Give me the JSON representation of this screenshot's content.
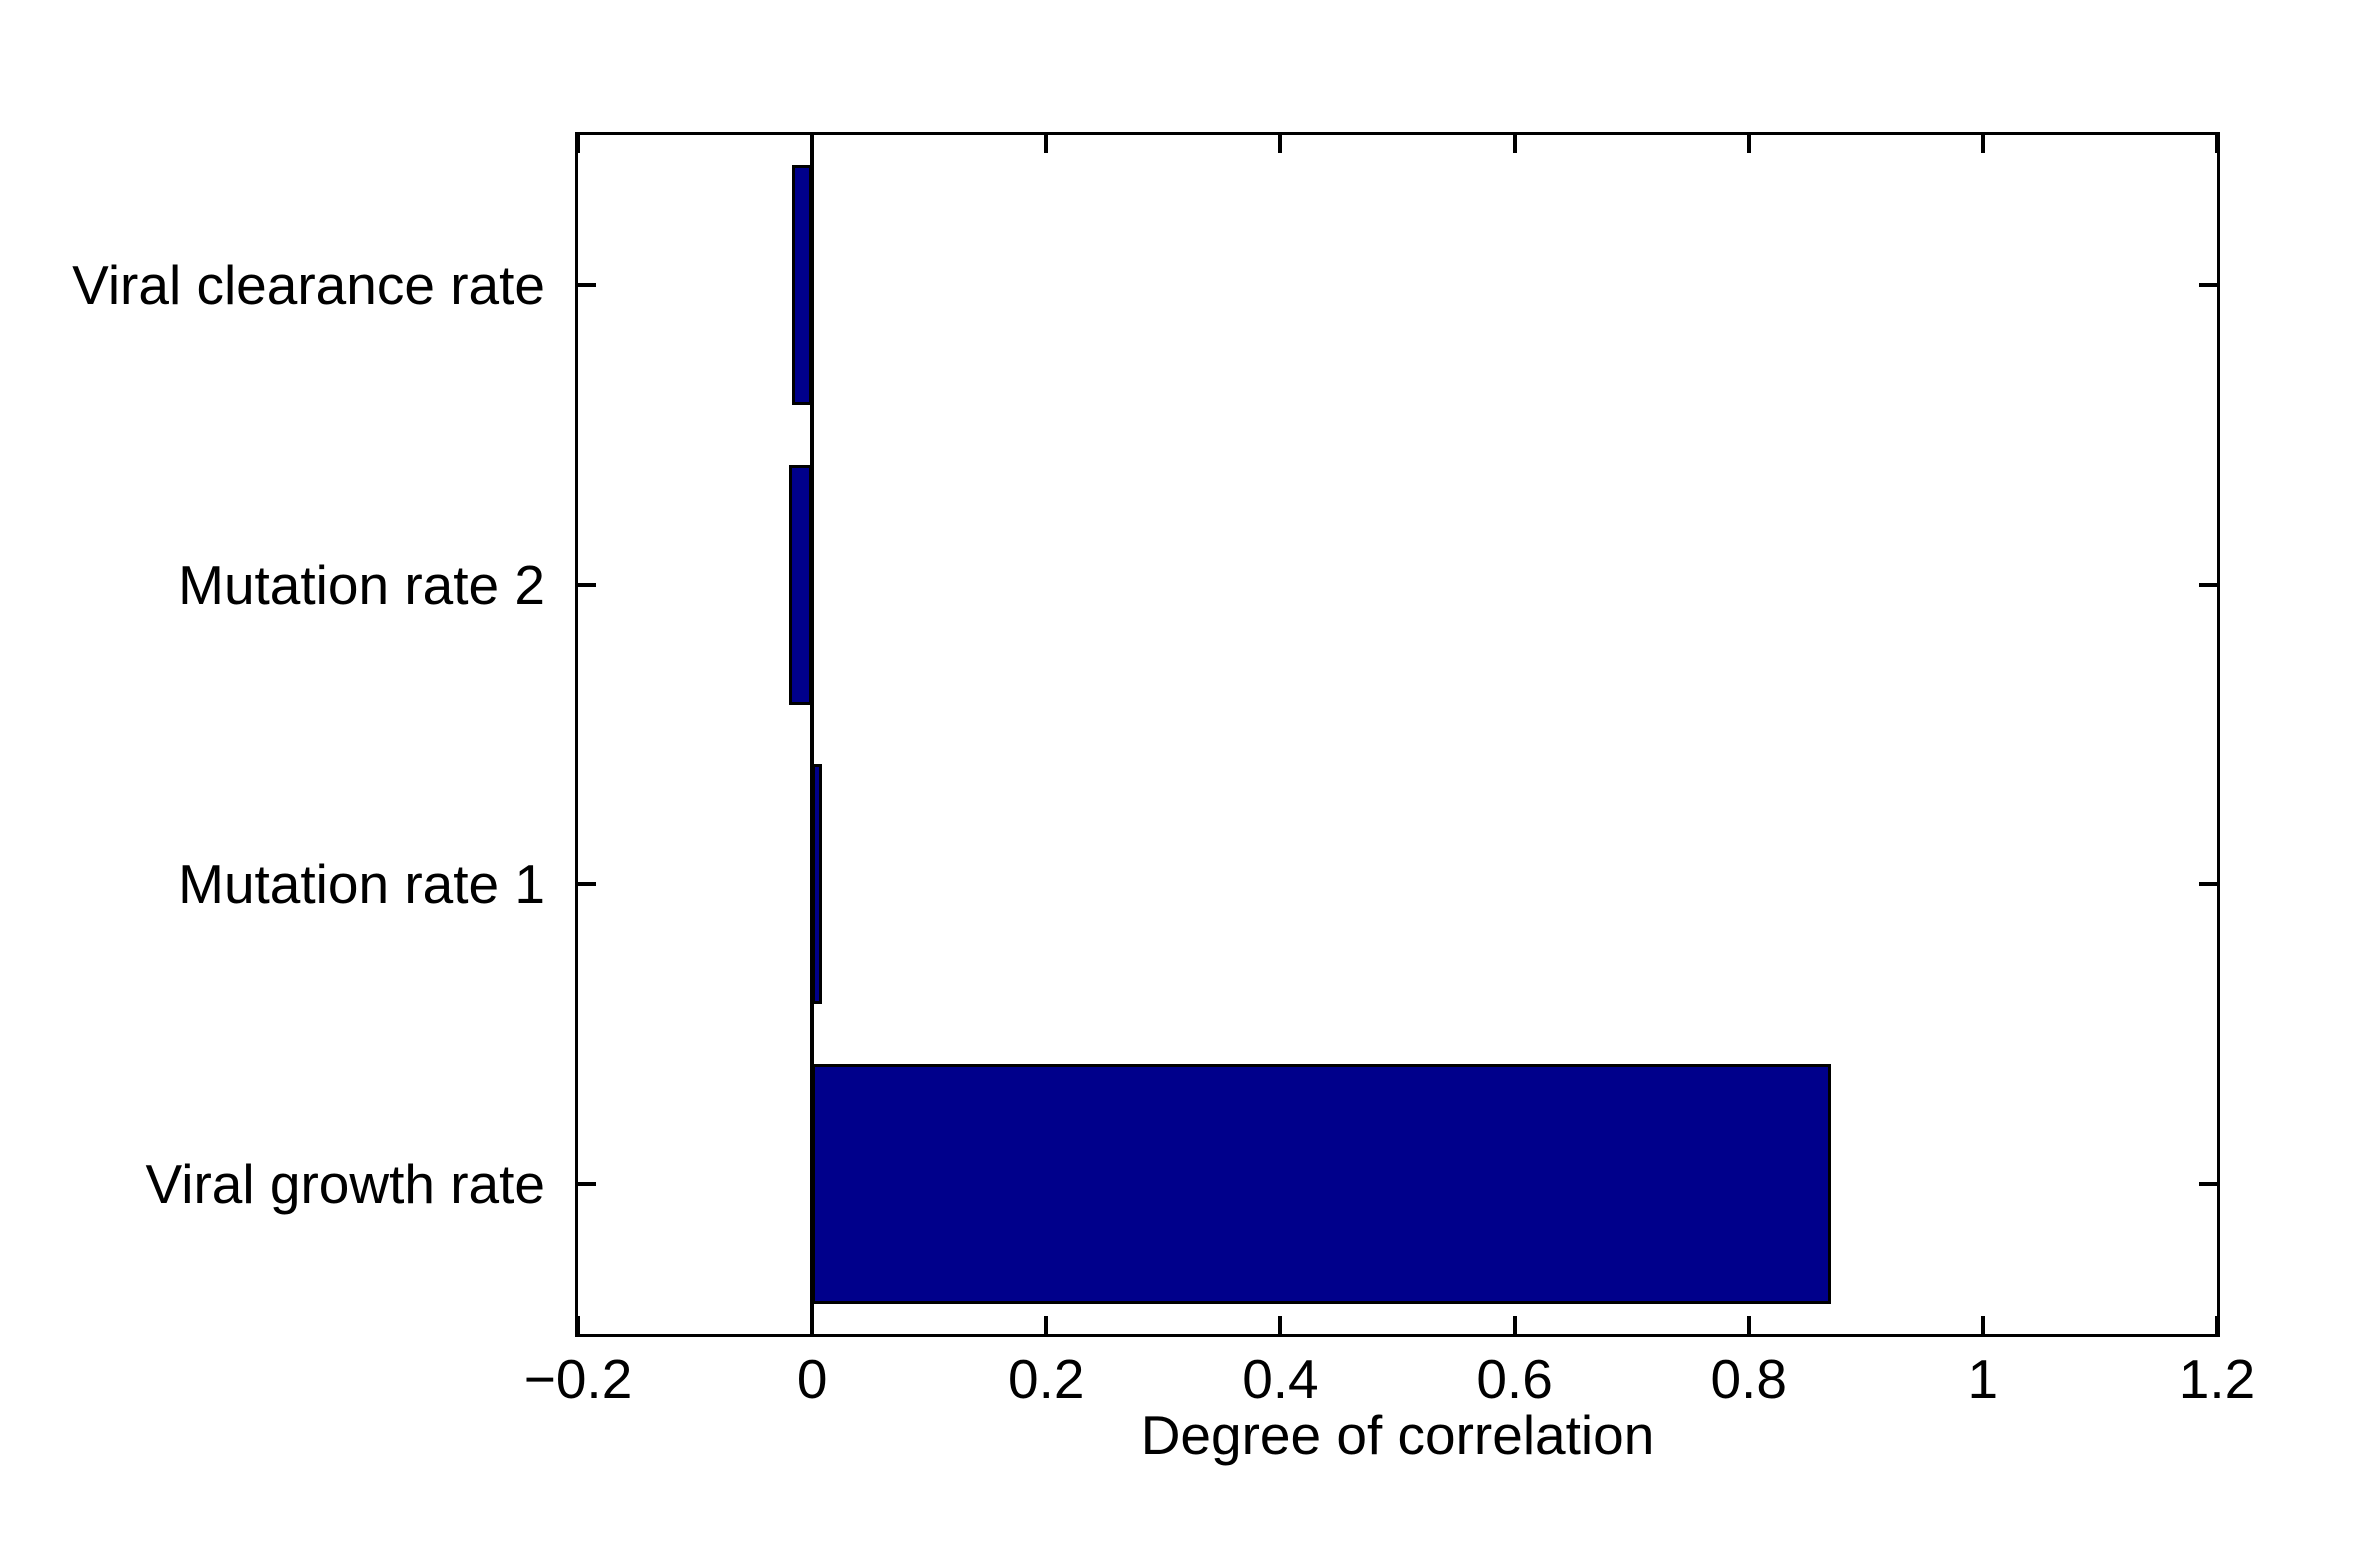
{
  "figure": {
    "background": "#ffffff",
    "axis_color": "#000000",
    "text_color": "#000000"
  },
  "chart_data": {
    "type": "bar",
    "orientation": "horizontal",
    "title": "",
    "xlabel": "Degree of correlation",
    "ylabel": "",
    "categories": [
      "Viral clearance rate",
      "Mutation rate 2",
      "Mutation rate 1",
      "Viral growth rate"
    ],
    "values": [
      -0.017,
      -0.02,
      0.008,
      0.87
    ],
    "xlim": [
      -0.2,
      1.2
    ],
    "xticks": [
      -0.2,
      0,
      0.2,
      0.4,
      0.6,
      0.8,
      1,
      1.2
    ],
    "xtick_labels": [
      "−0.2",
      "0",
      "0.2",
      "0.4",
      "0.6",
      "0.8",
      "1",
      "1.2"
    ],
    "baseline_x": 0,
    "bar_width_fraction": 0.8,
    "bar_color": "#00008B",
    "bar_edge_color": "#000000",
    "tick_direction": "in",
    "grid": false,
    "legend": null,
    "box": true
  }
}
